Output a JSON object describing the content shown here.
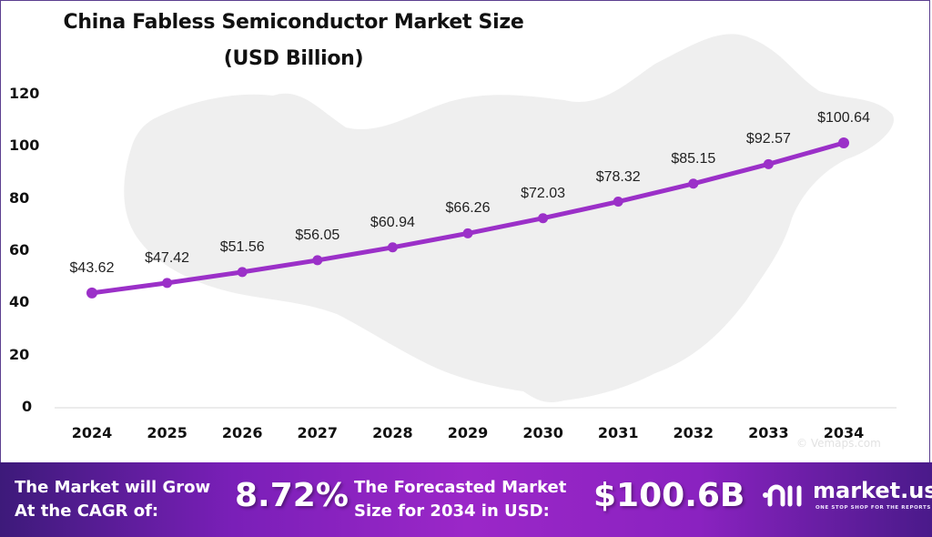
{
  "chart_data": {
    "type": "line",
    "title": "China Fabless Semiconductor Market Size",
    "subtitle": "(USD Billion)",
    "xlabel": "",
    "ylabel": "",
    "categories": [
      "2024",
      "2025",
      "2026",
      "2027",
      "2028",
      "2029",
      "2030",
      "2031",
      "2032",
      "2033",
      "2034"
    ],
    "values": [
      43.62,
      47.42,
      51.56,
      56.05,
      60.94,
      66.26,
      72.03,
      78.32,
      85.15,
      92.57,
      100.64
    ],
    "data_labels": [
      "$43.62",
      "$47.42",
      "$51.56",
      "$56.05",
      "$60.94",
      "$66.26",
      "$72.03",
      "$78.32",
      "$85.15",
      "$92.57",
      "$100.64"
    ],
    "ylim": [
      0,
      120
    ],
    "yticks": [
      "120",
      "100",
      "80",
      "60",
      "40",
      "20",
      "0"
    ],
    "grid": false,
    "legend": "none",
    "line_color": "#9b30c8"
  },
  "watermark": "© Vemaps.com",
  "banner": {
    "cagr_label_line1": "The Market will Grow",
    "cagr_label_line2": "At the CAGR of:",
    "cagr_value": "8.72%",
    "forecast_label_line1": "The Forecasted Market",
    "forecast_label_line2": "Size for 2034 in USD:",
    "forecast_value": "$100.6B",
    "logo_text": "market.us",
    "logo_tagline": "ONE STOP SHOP FOR THE REPORTS"
  }
}
